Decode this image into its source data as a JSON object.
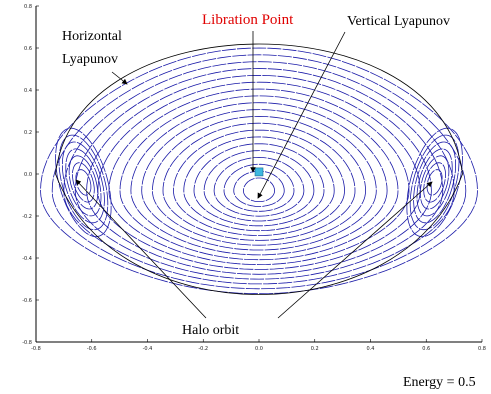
{
  "chart_data": {
    "type": "line",
    "title": "",
    "xlabel": "",
    "ylabel": "",
    "xlim": [
      -0.8,
      0.8
    ],
    "ylim": [
      -0.8,
      0.8
    ],
    "x_ticks": [
      "-0.8",
      "-0.6",
      "-0.4",
      "-0.2",
      "0.0",
      "0.2",
      "0.4",
      "0.6",
      "0.8"
    ],
    "y_ticks": [
      "0.8",
      "0.6",
      "0.4",
      "0.2",
      "0.0",
      "-0.2",
      "-0.4",
      "-0.6",
      "-0.8"
    ],
    "grid": false,
    "boundary_curve": {
      "x_extent": [
        -0.73,
        0.73
      ],
      "y_top": 0.73,
      "y_bottom": -0.67
    },
    "center_family": {
      "center": [
        0,
        -0.08
      ],
      "rings": 20,
      "max_semi_axes": [
        0.7,
        0.68
      ]
    },
    "side_families": [
      {
        "center": [
          -0.63,
          -0.04
        ],
        "rings": 7
      },
      {
        "center": [
          0.63,
          -0.04
        ],
        "rings": 7
      }
    ],
    "libration_point": [
      0.0,
      0.01
    ],
    "colors": {
      "orbits": "#1a1aa8",
      "boundary": "#000000",
      "libration_point": "#3fb8e0",
      "label_highlight": "#e00000"
    }
  },
  "annotations": {
    "libration_point": "Libration Point",
    "vertical_lyapunov": "Vertical Lyapunov",
    "horizontal_line1": "Horizontal",
    "horizontal_line2": "Lyapunov",
    "halo_orbit": "Halo orbit",
    "energy": "Energy = 0.5"
  }
}
